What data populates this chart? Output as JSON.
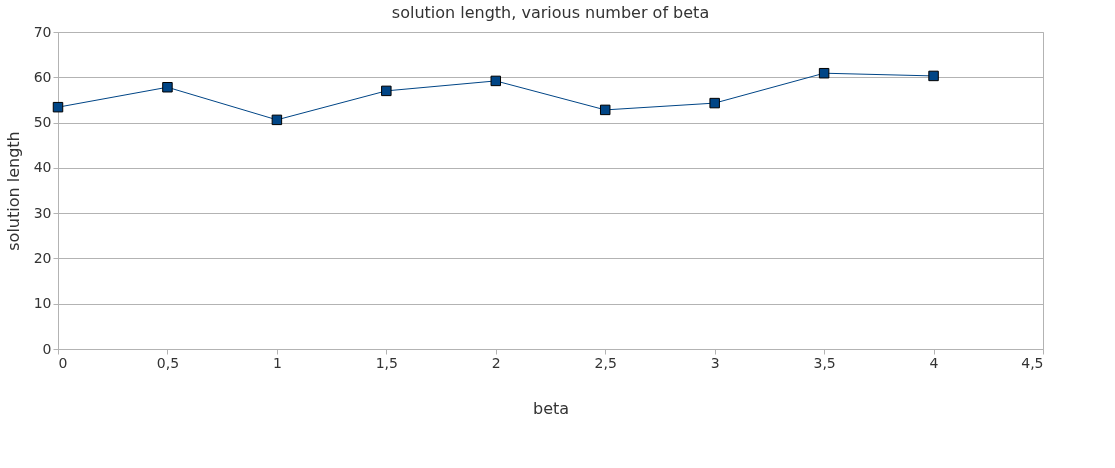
{
  "chart_data": {
    "type": "line",
    "title": "solution length, various number of beta",
    "xlabel": "beta",
    "ylabel": "solution length",
    "x": [
      0,
      0.5,
      1,
      1.5,
      2,
      2.5,
      3,
      3.5,
      4
    ],
    "series": [
      {
        "color": "#004586",
        "values": [
          53.4,
          57.8,
          50.6,
          57.0,
          59.2,
          52.8,
          54.3,
          60.9,
          60.3
        ]
      }
    ],
    "xlim": [
      0,
      4.5
    ],
    "xticks": [
      0,
      {
        "value": 0.5,
        "label": "0,5"
      },
      1,
      {
        "value": 1.5,
        "label": "1,5"
      },
      2,
      {
        "value": 2.5,
        "label": "2,5"
      },
      3,
      {
        "value": 3.5,
        "label": "3,5"
      },
      4,
      {
        "value": 4.5,
        "label": "4,5"
      }
    ],
    "ylim": [
      0,
      70
    ],
    "yticks": [
      0,
      10,
      20,
      30,
      40,
      50,
      60,
      70
    ],
    "grid": "y",
    "marker": "square",
    "line_style": "solid",
    "legend": false
  }
}
